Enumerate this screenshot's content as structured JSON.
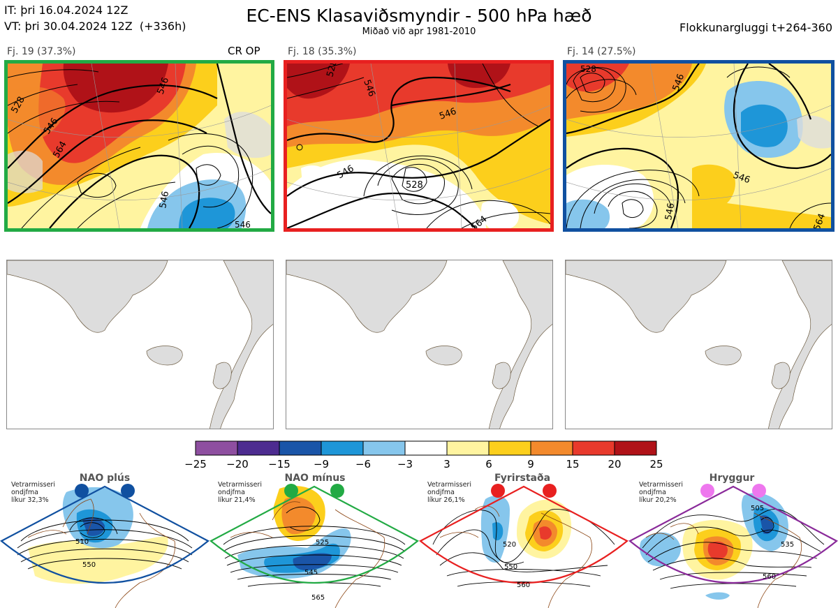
{
  "header": {
    "it_line": "IT: þri 16.04.2024 12Z",
    "vt_line": "VT: þri 30.04.2024 12Z  (+336h)",
    "title": "EC-ENS Klasaviðsmyndir - 500 hPa hæð",
    "subtitle": "Miðað við apr 1981-2010",
    "window": "Flokkunargluggi t+264-360"
  },
  "clusters": [
    {
      "label": "Fj. 19 (37.3%)",
      "tag": "CR OP",
      "color": "#22aa44",
      "contours": [
        "528",
        "546",
        "546",
        "564",
        "546",
        "546"
      ]
    },
    {
      "label": "Fj. 18 (35.3%)",
      "tag": "",
      "color": "#e82020",
      "contours": [
        "528",
        "546",
        "546",
        "528",
        "546",
        "564"
      ]
    },
    {
      "label": "Fj. 14 (27.5%)",
      "tag": "",
      "color": "#1050a0",
      "contours": [
        "528",
        "546",
        "546",
        "546",
        "564"
      ]
    }
  ],
  "colorbar": {
    "ticks": [
      "−25",
      "−20",
      "−15",
      "−9",
      "−6",
      "−3",
      "3",
      "6",
      "9",
      "15",
      "20",
      "25"
    ],
    "colors": [
      "#8e4fa0",
      "#4d2c90",
      "#1a55a8",
      "#1e96d8",
      "#86c6ec",
      "#ffffff",
      "#fff4a0",
      "#fccf1c",
      "#f38a2c",
      "#e83a2c",
      "#b01218"
    ]
  },
  "regimes": [
    {
      "title": "NAO plús",
      "info": [
        "Vetrarmisseri",
        "ondjfma",
        "líkur 32,3%"
      ],
      "color": "#1050a0",
      "dot_color": "#1050a0",
      "labels": [
        "510",
        "550"
      ]
    },
    {
      "title": "NAO mínus",
      "info": [
        "Vetrarmisseri",
        "ondjfma",
        "líkur 21,4%"
      ],
      "color": "#22aa44",
      "dot_color": "#22aa44",
      "labels": [
        "525",
        "545",
        "565"
      ]
    },
    {
      "title": "Fyrirstaða",
      "info": [
        "Vetrarmisseri",
        "ondjfma",
        "líkur 26,1%"
      ],
      "color": "#e82020",
      "dot_color": "#e82020",
      "labels": [
        "520",
        "550",
        "560"
      ]
    },
    {
      "title": "Hryggur",
      "info": [
        "Vetrarmisseri",
        "ondjfma",
        "líkur 20,2%"
      ],
      "color": "#8a2a9a",
      "dot_color": "#ee77ee",
      "labels": [
        "505",
        "535",
        "560"
      ]
    }
  ]
}
